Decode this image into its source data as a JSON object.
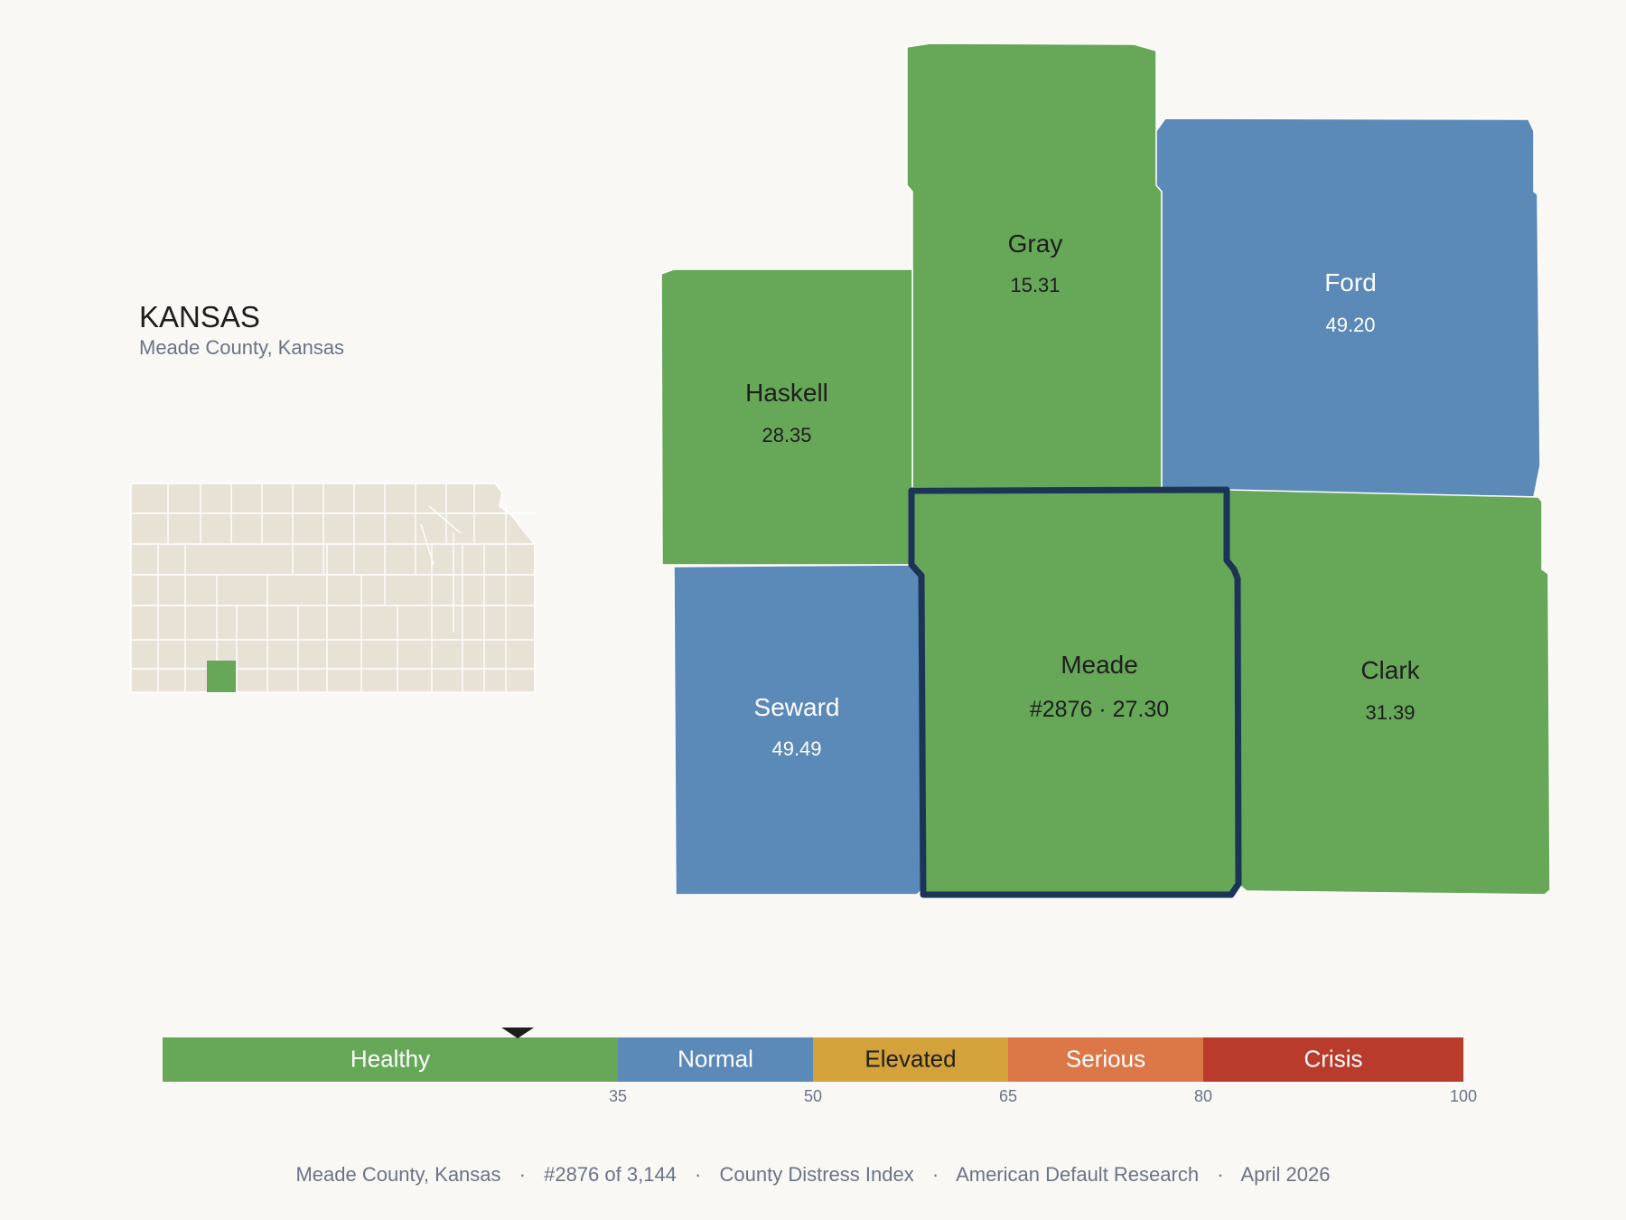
{
  "state": {
    "title": "KANSAS",
    "subtitle": "Meade County, Kansas"
  },
  "colors": {
    "healthy": "#66a758",
    "normal": "#5b89b8",
    "elevated": "#d4a23a",
    "serious": "#dc7747",
    "crisis": "#b93b2b",
    "locator_fill": "#e7e1d6",
    "highlight_outline": "#1c3557",
    "background": "#f9f8f5"
  },
  "counties": {
    "gray": {
      "name": "Gray",
      "value": "15.31",
      "category": "healthy"
    },
    "ford": {
      "name": "Ford",
      "value": "49.20",
      "category": "normal"
    },
    "haskell": {
      "name": "Haskell",
      "value": "28.35",
      "category": "healthy"
    },
    "meade": {
      "name": "Meade",
      "value": "#2876 · 27.30",
      "category": "healthy",
      "highlighted": true
    },
    "seward": {
      "name": "Seward",
      "value": "49.49",
      "category": "normal"
    },
    "clark": {
      "name": "Clark",
      "value": "31.39",
      "category": "healthy"
    },
    "north_unlabeled": {
      "name": "",
      "value": "",
      "category": "healthy"
    }
  },
  "legend": {
    "bands": [
      {
        "label": "Healthy",
        "from": 0,
        "to": 35,
        "color": "#66a758"
      },
      {
        "label": "Normal",
        "from": 35,
        "to": 50,
        "color": "#5b89b8"
      },
      {
        "label": "Elevated",
        "from": 50,
        "to": 65,
        "color": "#d4a23a"
      },
      {
        "label": "Serious",
        "from": 65,
        "to": 80,
        "color": "#dc7747"
      },
      {
        "label": "Crisis",
        "from": 80,
        "to": 100,
        "color": "#b93b2b"
      }
    ],
    "ticks": [
      "35",
      "50",
      "65",
      "80",
      "100"
    ],
    "marker_value": 27.3,
    "scale_min": 0,
    "scale_max": 100
  },
  "footer": {
    "county": "Meade County, Kansas",
    "rank": "#2876 of 3,144",
    "index": "County Distress Index",
    "source": "American Default Research",
    "date": "April 2026",
    "separator": "·"
  }
}
